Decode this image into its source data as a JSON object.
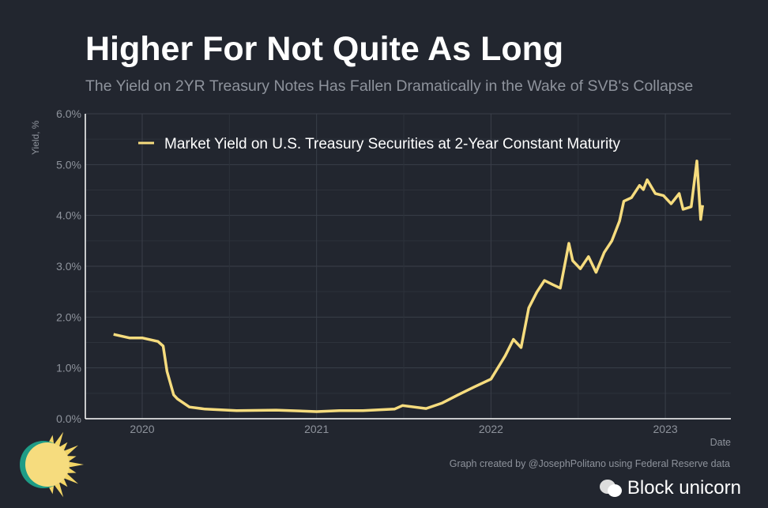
{
  "header": {
    "title": "Higher For Not Quite As Long",
    "subtitle": "The Yield on 2YR Treasury Notes Has Fallen Dramatically in the Wake of SVB's Collapse"
  },
  "footer": {
    "caption": "Graph created by @JosephPolitano using Federal Reserve data",
    "watermark": "Block unicorn"
  },
  "colors": {
    "background": "#22262f",
    "line": "#f6dc7e",
    "grid": "#3a3f49",
    "axis": "#ffffff",
    "text": "#8e939c"
  },
  "chart_data": {
    "type": "line",
    "xlabel": "Date",
    "ylabel": "Yield, %",
    "ylim": [
      0,
      6
    ],
    "yticks": [
      "0.0%",
      "1.0%",
      "2.0%",
      "3.0%",
      "4.0%",
      "5.0%",
      "6.0%"
    ],
    "xticks": [
      "2020",
      "2021",
      "2022",
      "2023"
    ],
    "grid": true,
    "legend_position": "top",
    "series": [
      {
        "name": "Market Yield on U.S. Treasury Securities at 2-Year Constant Maturity",
        "x": [
          "2019-11-02",
          "2019-12-05",
          "2020-01-01",
          "2020-02-03",
          "2020-02-14",
          "2020-02-22",
          "2020-03-07",
          "2020-03-15",
          "2020-04-09",
          "2020-05-12",
          "2020-07-17",
          "2020-10-08",
          "2021-01-01",
          "2021-02-18",
          "2021-04-08",
          "2021-06-13",
          "2021-06-30",
          "2021-08-18",
          "2021-09-21",
          "2021-10-24",
          "2021-11-26",
          "2022-01-01",
          "2022-01-31",
          "2022-02-17",
          "2022-03-05",
          "2022-03-21",
          "2022-04-07",
          "2022-04-23",
          "2022-05-10",
          "2022-05-26",
          "2022-06-13",
          "2022-06-21",
          "2022-07-07",
          "2022-07-24",
          "2022-08-09",
          "2022-08-26",
          "2022-09-11",
          "2022-09-27",
          "2022-10-06",
          "2022-10-22",
          "2022-11-08",
          "2022-11-16",
          "2022-11-24",
          "2022-12-11",
          "2022-12-28",
          "2023-01-13",
          "2023-01-30",
          "2023-02-07",
          "2023-02-24",
          "2023-03-08",
          "2023-03-16",
          "2023-03-20"
        ],
        "y": [
          1.66,
          1.59,
          1.59,
          1.52,
          1.43,
          0.93,
          0.47,
          0.39,
          0.23,
          0.19,
          0.16,
          0.17,
          0.14,
          0.16,
          0.16,
          0.19,
          0.26,
          0.2,
          0.31,
          0.47,
          0.62,
          0.78,
          1.24,
          1.56,
          1.4,
          2.18,
          2.49,
          2.72,
          2.64,
          2.57,
          3.45,
          3.11,
          2.95,
          3.19,
          2.88,
          3.27,
          3.5,
          3.89,
          4.28,
          4.35,
          4.59,
          4.51,
          4.7,
          4.43,
          4.39,
          4.23,
          4.43,
          4.12,
          4.17,
          5.07,
          3.92,
          4.2
        ]
      }
    ]
  }
}
